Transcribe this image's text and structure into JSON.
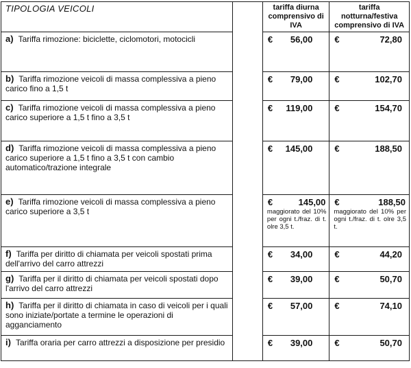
{
  "currency": "€",
  "header": {
    "tipologia": "TIPOLOGIA VEICOLI",
    "diurna": "tariffa diurna\ncomprensivo di\nIVA",
    "notturna": "tariffa\nnotturna/festiva\ncomprensivo di IVA"
  },
  "rows": [
    {
      "label": "a)",
      "desc": "Tariffa rimozione: biciclette, ciclomotori, motocicli",
      "diurna": "56,00",
      "notturna": "72,80"
    },
    {
      "label": "b)",
      "desc": "Tariffa rimozione veicoli di massa complessiva a pieno carico fino a 1,5 t",
      "diurna": "79,00",
      "notturna": "102,70"
    },
    {
      "label": "c)",
      "desc": "Tariffa rimozione veicoli di massa complessiva a pieno carico superiore a 1,5 t fino a 3,5 t",
      "diurna": "119,00",
      "notturna": "154,70"
    },
    {
      "label": "d)",
      "desc": "Tariffa rimozione veicoli di massa complessiva a pieno carico superiore a 1,5 t fino a 3,5 t con cambio automatico/trazione integrale",
      "diurna": "145,00",
      "notturna": "188,50"
    },
    {
      "label": "e)",
      "desc": "Tariffa rimozione veicoli di massa complessiva a pieno carico superiore a 3,5 t",
      "diurna": "145,00",
      "notturna": "188,50",
      "diurna_note": "maggiorato del 10% per ogni t./fraz. di t. olre 3,5 t.",
      "notturna_note": "maggiorato del 10% per ogni t./fraz. di t. olre 3,5 t."
    },
    {
      "label": "f)",
      "desc": "Tariffa per diritto di chiamata per veicoli spostati prima dell'arrivo del carro attrezzi",
      "diurna": "34,00",
      "notturna": "44,20"
    },
    {
      "label": "g)",
      "desc": "Tariffa per il diritto di chiamata per veicoli spostati dopo l'arrivo del carro attrezzi",
      "diurna": "39,00",
      "notturna": "50,70"
    },
    {
      "label": "h)",
      "desc": "Tariffa per il diritto di chiamata in caso di veicoli per i quali sono iniziate/portate a termine le operazioni di agganciamento",
      "diurna": "57,00",
      "notturna": "74,10"
    },
    {
      "label": "i)",
      "desc": "Tariffa oraria per carro attrezzi a disposizione per presidio",
      "diurna": "39,00",
      "notturna": "50,70"
    }
  ]
}
